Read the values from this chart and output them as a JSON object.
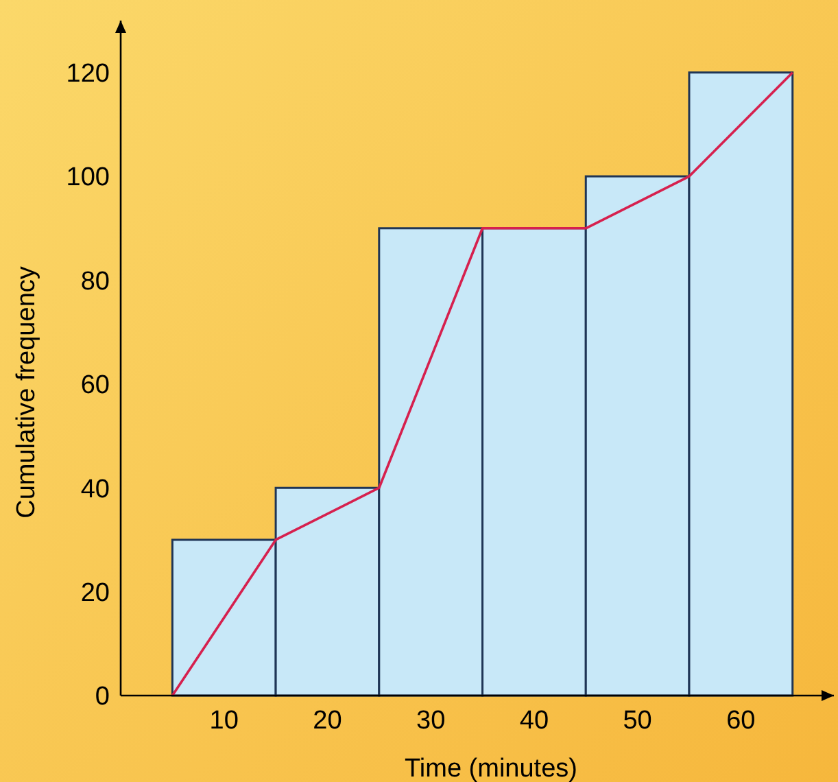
{
  "chart_data": {
    "type": "histogram",
    "xlabel": "Time (minutes)",
    "ylabel": "Cumulative frequency",
    "xlim": [
      0,
      69
    ],
    "ylim": [
      0,
      130
    ],
    "xticks": [
      10,
      20,
      30,
      40,
      50,
      60
    ],
    "yticks": [
      0,
      20,
      40,
      60,
      80,
      100,
      120
    ],
    "grid": false,
    "series": [
      {
        "color": "#c8e8f8",
        "bins": [
          5,
          15,
          25,
          35,
          45,
          55,
          65
        ],
        "values": [
          30,
          40,
          90,
          90,
          100,
          120
        ]
      },
      {
        "type": "line",
        "color": "#d6204e",
        "x": [
          5,
          15,
          25,
          35,
          45,
          55,
          65
        ],
        "values": [
          0,
          30,
          40,
          90,
          90,
          100,
          120
        ]
      }
    ]
  }
}
